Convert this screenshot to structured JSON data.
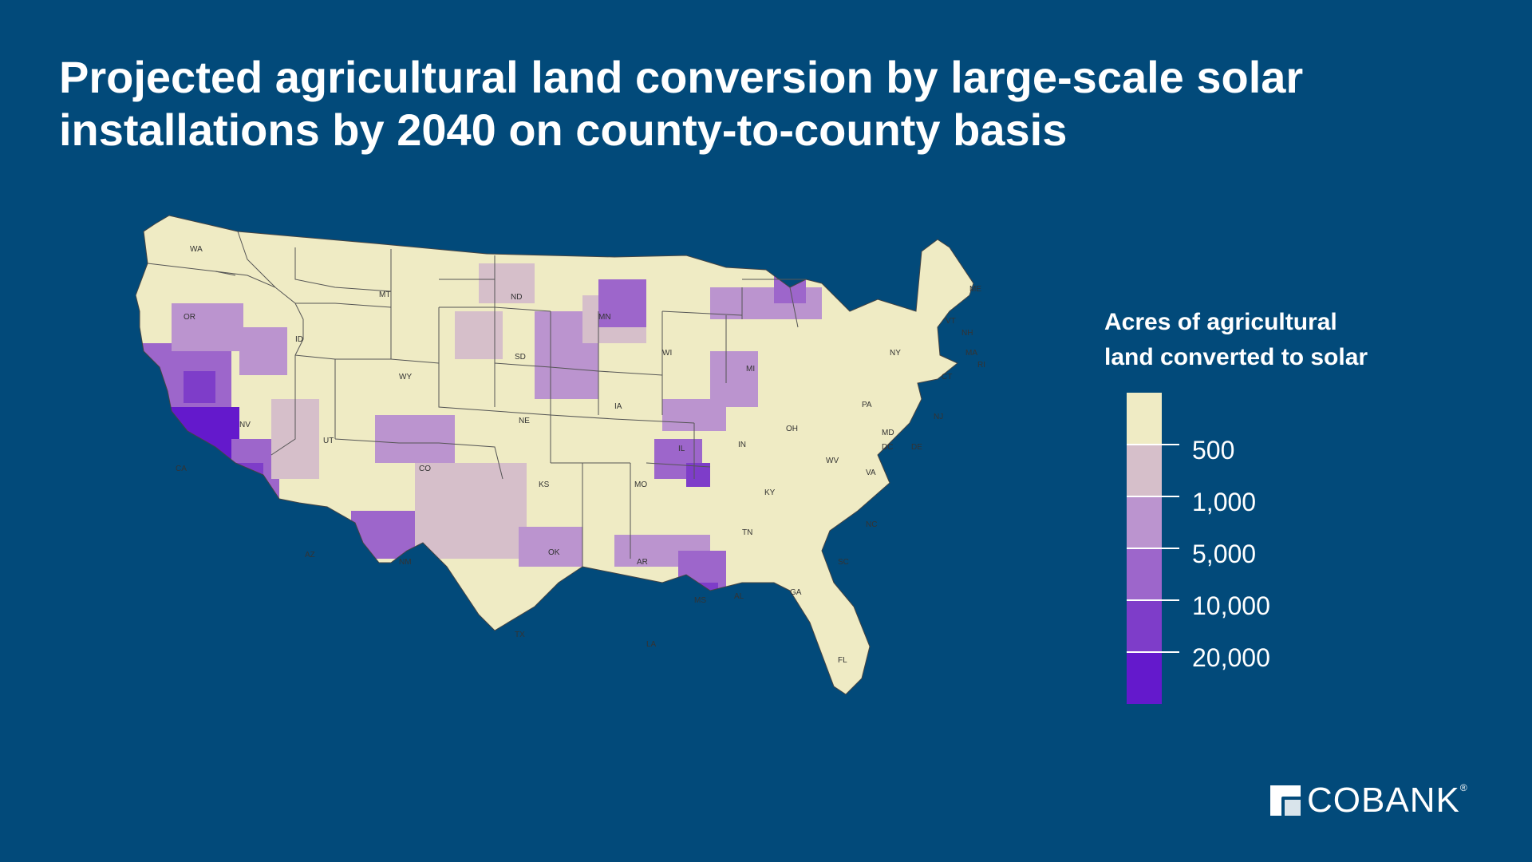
{
  "title": {
    "line1": "Projected agricultural land conversion by large-scale solar",
    "line2": "installations by 2040 on county-to-county basis"
  },
  "legend": {
    "title_line1": "Acres of agricultural",
    "title_line2": "land converted to solar",
    "breaks": [
      "500",
      "1,000",
      "5,000",
      "10,000",
      "20,000"
    ],
    "colors": [
      "#efebc4",
      "#d6bfca",
      "#bb94cf",
      "#9d66cb",
      "#7e3dc9",
      "#6419cc"
    ]
  },
  "map": {
    "land_color": "#efebc4",
    "border_color": "#555555",
    "background_color": "#024a7a",
    "state_labels": [
      "WA",
      "OR",
      "ID",
      "MT",
      "ND",
      "MN",
      "ME",
      "VT",
      "NH",
      "MA",
      "RI",
      "CT",
      "NY",
      "WI",
      "MI",
      "SD",
      "WY",
      "NV",
      "CA",
      "UT",
      "CO",
      "NE",
      "IA",
      "IL",
      "IN",
      "OH",
      "PA",
      "NJ",
      "MD",
      "DE",
      "DC",
      "WV",
      "VA",
      "KY",
      "KS",
      "MO",
      "OK",
      "AR",
      "TN",
      "NC",
      "SC",
      "NM",
      "AZ",
      "TX",
      "LA",
      "MS",
      "AL",
      "GA",
      "FL"
    ]
  },
  "logo": {
    "text": "COBANK",
    "registered": "®",
    "icon": "cobank-logo-icon"
  }
}
